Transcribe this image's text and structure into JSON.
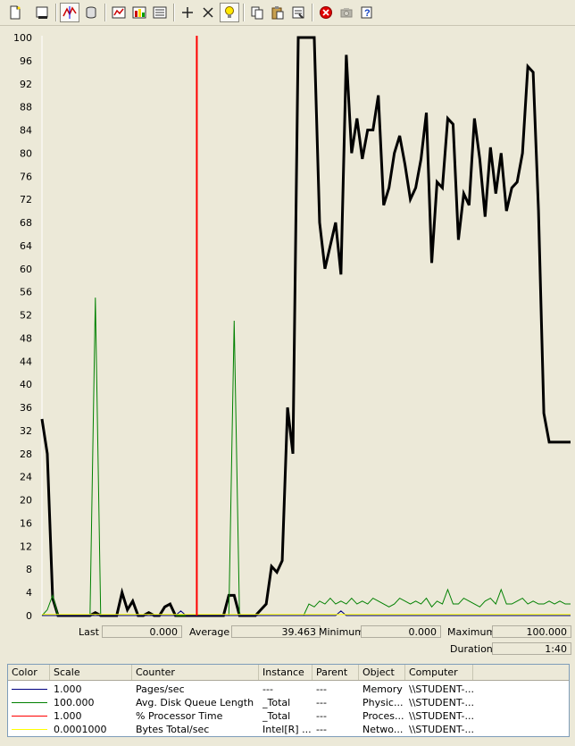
{
  "toolbar": {
    "buttons": [
      {
        "name": "new-counter-set-icon"
      },
      {
        "name": "clear-display-icon"
      },
      {
        "name": "view-current-activity-icon"
      },
      {
        "name": "view-log-data-icon"
      },
      {
        "name": "view-graph-icon"
      },
      {
        "name": "view-histogram-icon"
      },
      {
        "name": "view-report-icon"
      },
      {
        "name": "add-icon"
      },
      {
        "name": "delete-icon"
      },
      {
        "name": "highlight-icon"
      },
      {
        "name": "copy-properties-icon"
      },
      {
        "name": "paste-counter-list-icon"
      },
      {
        "name": "properties-icon"
      },
      {
        "name": "freeze-display-icon"
      },
      {
        "name": "update-data-icon"
      },
      {
        "name": "help-icon"
      }
    ]
  },
  "chart_data": {
    "type": "line",
    "ylim": [
      0,
      100
    ],
    "y_ticks": [
      "0",
      "4",
      "8",
      "12",
      "16",
      "20",
      "24",
      "28",
      "32",
      "36",
      "40",
      "44",
      "48",
      "52",
      "56",
      "60",
      "64",
      "68",
      "72",
      "76",
      "80",
      "84",
      "88",
      "92",
      "96",
      "100"
    ],
    "grid": false,
    "time_bar_x": 29,
    "series": [
      {
        "color": "#000000",
        "x": [
          0,
          1,
          2,
          3,
          4,
          5,
          6,
          7,
          8,
          9,
          10,
          11,
          12,
          13,
          14,
          15,
          16,
          17,
          18,
          19,
          20,
          21,
          22,
          23,
          24,
          25,
          26,
          27,
          28,
          29,
          30,
          31,
          32,
          33,
          34,
          35,
          36,
          37,
          38,
          39,
          40,
          41,
          42,
          43,
          44,
          45,
          46,
          47,
          48,
          49,
          50,
          51,
          52,
          53,
          54,
          55,
          56,
          57,
          58,
          59,
          60,
          61,
          62,
          63,
          64,
          65,
          66,
          67,
          68,
          69,
          70,
          71,
          72,
          73,
          74,
          75,
          76,
          77,
          78,
          79,
          80,
          81,
          82,
          83,
          84,
          85,
          86,
          87,
          88,
          89,
          90,
          91,
          92,
          93,
          94,
          95,
          96,
          97,
          98,
          99
        ],
        "y": [
          34,
          28,
          3,
          0,
          0,
          0,
          0,
          0,
          0,
          0,
          0.5,
          0,
          0,
          0,
          0,
          4,
          1,
          2.5,
          0,
          0,
          0.5,
          0,
          0,
          1.5,
          2,
          0,
          0,
          0,
          0,
          0,
          0,
          0,
          0,
          0,
          0,
          3.5,
          3.5,
          0,
          0,
          0,
          0,
          1,
          2,
          8.5,
          7.5,
          9.5,
          36,
          28,
          100,
          100,
          100,
          100,
          68,
          60,
          64,
          68,
          59,
          97,
          80,
          86,
          79,
          84,
          84,
          90,
          71,
          74,
          80,
          83,
          78,
          72,
          74,
          79,
          87,
          61,
          75,
          74,
          86,
          85,
          65,
          73,
          71,
          86,
          79,
          69,
          81,
          73,
          80,
          70,
          74,
          75,
          80,
          95,
          94,
          70,
          35,
          30,
          30,
          30,
          30,
          30
        ]
      },
      {
        "color": "#008000",
        "x": [
          0,
          1,
          2,
          3,
          4,
          5,
          6,
          7,
          8,
          9,
          10,
          11,
          12,
          13,
          14,
          15,
          16,
          17,
          18,
          19,
          20,
          21,
          22,
          23,
          24,
          25,
          26,
          27,
          28,
          29,
          30,
          31,
          32,
          33,
          34,
          35,
          36,
          37,
          38,
          39,
          40,
          41,
          42,
          43,
          44,
          45,
          46,
          47,
          48,
          49,
          50,
          51,
          52,
          53,
          54,
          55,
          56,
          57,
          58,
          59,
          60,
          61,
          62,
          63,
          64,
          65,
          66,
          67,
          68,
          69,
          70,
          71,
          72,
          73,
          74,
          75,
          76,
          77,
          78,
          79,
          80,
          81,
          82,
          83,
          84,
          85,
          86,
          87,
          88,
          89,
          90,
          91,
          92,
          93,
          94,
          95,
          96,
          97,
          98,
          99
        ],
        "y": [
          0,
          1,
          3.5,
          0,
          0,
          0,
          0,
          0,
          0,
          0,
          55,
          0,
          0,
          0,
          0,
          0,
          0,
          0,
          0,
          0,
          0,
          0,
          0,
          0,
          0,
          0,
          0,
          0,
          0,
          0,
          0,
          0,
          0,
          0,
          0,
          0,
          51,
          0,
          0,
          0,
          0,
          0,
          0,
          0,
          0,
          0,
          0,
          0,
          0,
          0,
          2,
          1.5,
          2.5,
          2,
          3,
          2,
          2.5,
          2,
          3,
          2,
          2.5,
          2,
          3,
          2.5,
          2,
          1.5,
          2,
          3,
          2.5,
          2,
          2.5,
          2,
          3,
          1.5,
          2.5,
          2,
          4.5,
          2,
          2,
          3,
          2.5,
          2,
          1.5,
          2.5,
          3,
          2,
          4.5,
          2,
          2,
          2.5,
          3,
          2,
          2.5,
          2,
          2,
          2.5,
          2,
          2.5,
          2,
          2
        ]
      },
      {
        "color": "#000080",
        "x": [
          0,
          10,
          20,
          25,
          26,
          27,
          30,
          40,
          55,
          56,
          57,
          60,
          70,
          80,
          90,
          99
        ],
        "y": [
          0,
          0,
          0,
          0,
          0.8,
          0,
          0,
          0,
          0,
          0.8,
          0,
          0,
          0,
          0,
          0,
          0
        ]
      },
      {
        "color": "#ffff00",
        "x": [
          0,
          99
        ],
        "y": [
          0.2,
          0.2
        ]
      }
    ]
  },
  "stats": {
    "last_label": "Last",
    "last_value": "0.000",
    "average_label": "Average",
    "average_value": "39.463",
    "minimum_label": "Minimum",
    "minimum_value": "0.000",
    "maximum_label": "Maximum",
    "maximum_value": "100.000",
    "duration_label": "Duration",
    "duration_value": "1:40"
  },
  "legend": {
    "headers": {
      "color": "Color",
      "scale": "Scale",
      "counter": "Counter",
      "instance": "Instance",
      "parent": "Parent",
      "object": "Object",
      "computer": "Computer"
    },
    "rows": [
      {
        "color": "#000080",
        "scale": "1.000",
        "counter": "Pages/sec",
        "instance": "---",
        "parent": "---",
        "object": "Memory",
        "computer": "\\\\STUDENT-..."
      },
      {
        "color": "#008000",
        "scale": "100.000",
        "counter": "Avg. Disk Queue Length",
        "instance": "_Total",
        "parent": "---",
        "object": "Physic...",
        "computer": "\\\\STUDENT-..."
      },
      {
        "color": "#ff0000",
        "scale": "1.000",
        "counter": "% Processor Time",
        "instance": "_Total",
        "parent": "---",
        "object": "Proces...",
        "computer": "\\\\STUDENT-..."
      },
      {
        "color": "#ffff00",
        "scale": "0.0001000",
        "counter": "Bytes Total/sec",
        "instance": "Intel[R] ...",
        "parent": "---",
        "object": "Netwo...",
        "computer": "\\\\STUDENT-..."
      }
    ]
  }
}
